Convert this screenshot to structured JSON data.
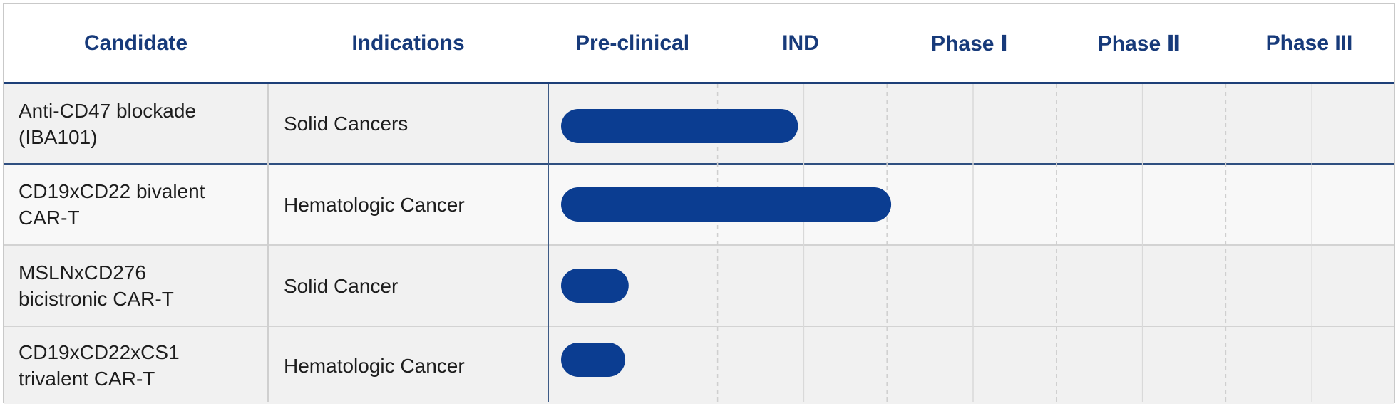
{
  "chart_data": {
    "type": "bar",
    "title": "",
    "columns": {
      "candidate": "Candidate",
      "indications": "Indications"
    },
    "phases": [
      "Pre-clinical",
      "IND",
      "Phase Ⅰ",
      "Phase Ⅱ",
      "Phase III"
    ],
    "rows": [
      {
        "candidate_line1": "Anti-CD47 blockade",
        "candidate_line2": "(IBA101)",
        "indication": "Solid Cancers",
        "progress": 1.5
      },
      {
        "candidate_line1": "CD19xCD22 bivalent",
        "candidate_line2": "CAR-T",
        "indication": "Hematologic Cancer",
        "progress": 2.05
      },
      {
        "candidate_line1": "MSLNxCD276",
        "candidate_line2": "bicistronic CAR-T",
        "indication": "Solid Cancer",
        "progress": 0.5
      },
      {
        "candidate_line1": "CD19xCD22xCS1",
        "candidate_line2": "trivalent CAR-T",
        "indication": "Hematologic Cancer",
        "progress": 0.48
      }
    ],
    "progress_unit": "stages completed (Pre-clinical = 1)",
    "bar_color": "#0b3d91",
    "header_color": "#173a7a"
  }
}
